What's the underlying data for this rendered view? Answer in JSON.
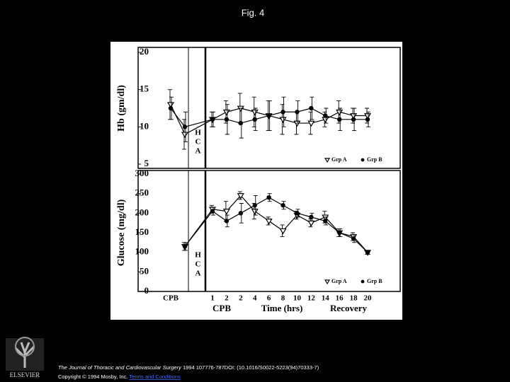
{
  "slide": {
    "title": "Fig. 4",
    "journal": "The Journal of Thoracic and Cardiovascular Surgery",
    "reference": "1994 107776-787DOI: (10.1016/S0022-5223(94)70333-7)",
    "copyright": "Copyright © 1994 Mosby, Inc.",
    "link": "Terms and Conditions",
    "logo": "ELSEVIER"
  },
  "chart_data": [
    {
      "type": "line",
      "ylabel": "Hb (gm/dl)",
      "annotation": "HCA",
      "ylim": [
        5,
        20
      ],
      "yticks": [
        5,
        10,
        15,
        20
      ],
      "series": [
        {
          "name": "Grp A",
          "color": "#000000",
          "marker": "triangle-open",
          "values": [
            13,
            9,
            11,
            12,
            12.5,
            12,
            11.5,
            11,
            10.5,
            10.5,
            11,
            12,
            11.5,
            11.5
          ],
          "errors": [
            2,
            2,
            1,
            1.5,
            2,
            2,
            2,
            2,
            1.5,
            1.5,
            1,
            1.5,
            1,
            1
          ]
        },
        {
          "name": "Grp B",
          "color": "#000000",
          "marker": "circle-filled",
          "values": [
            12.5,
            10,
            11,
            11,
            10.5,
            11,
            11.5,
            12,
            12,
            12.5,
            11.5,
            11,
            11,
            11
          ],
          "errors": [
            1.5,
            2,
            1,
            2,
            2,
            1.5,
            2,
            2,
            1.5,
            1.5,
            1,
            1.5,
            1.5,
            1
          ]
        }
      ]
    },
    {
      "type": "line",
      "ylabel": "Glucose (mg/dl)",
      "annotation": "HCA",
      "ylim": [
        0,
        300
      ],
      "yticks": [
        0,
        50,
        100,
        150,
        200,
        250,
        300
      ],
      "categories": [
        "CPB",
        null,
        "1",
        "2",
        "2",
        "4",
        "6",
        "8",
        "10",
        "12",
        "14",
        "16",
        "18",
        "20"
      ],
      "xgroups": [
        "CPB",
        "Time (hrs)",
        "Recovery"
      ],
      "series": [
        {
          "name": "Grp A",
          "color": "#000000",
          "marker": "triangle-open",
          "values": [
            null,
            115,
            210,
            205,
            245,
            205,
            180,
            155,
            195,
            175,
            190,
            150,
            140,
            100
          ],
          "errors": [
            null,
            10,
            10,
            25,
            10,
            20,
            10,
            15,
            10,
            10,
            15,
            10,
            10,
            5
          ]
        },
        {
          "name": "Grp B",
          "color": "#000000",
          "marker": "circle-filled",
          "values": [
            null,
            115,
            205,
            180,
            200,
            220,
            240,
            220,
            200,
            190,
            180,
            150,
            135,
            100
          ],
          "errors": [
            null,
            10,
            10,
            15,
            25,
            25,
            10,
            10,
            10,
            10,
            10,
            10,
            10,
            5
          ]
        }
      ]
    }
  ]
}
